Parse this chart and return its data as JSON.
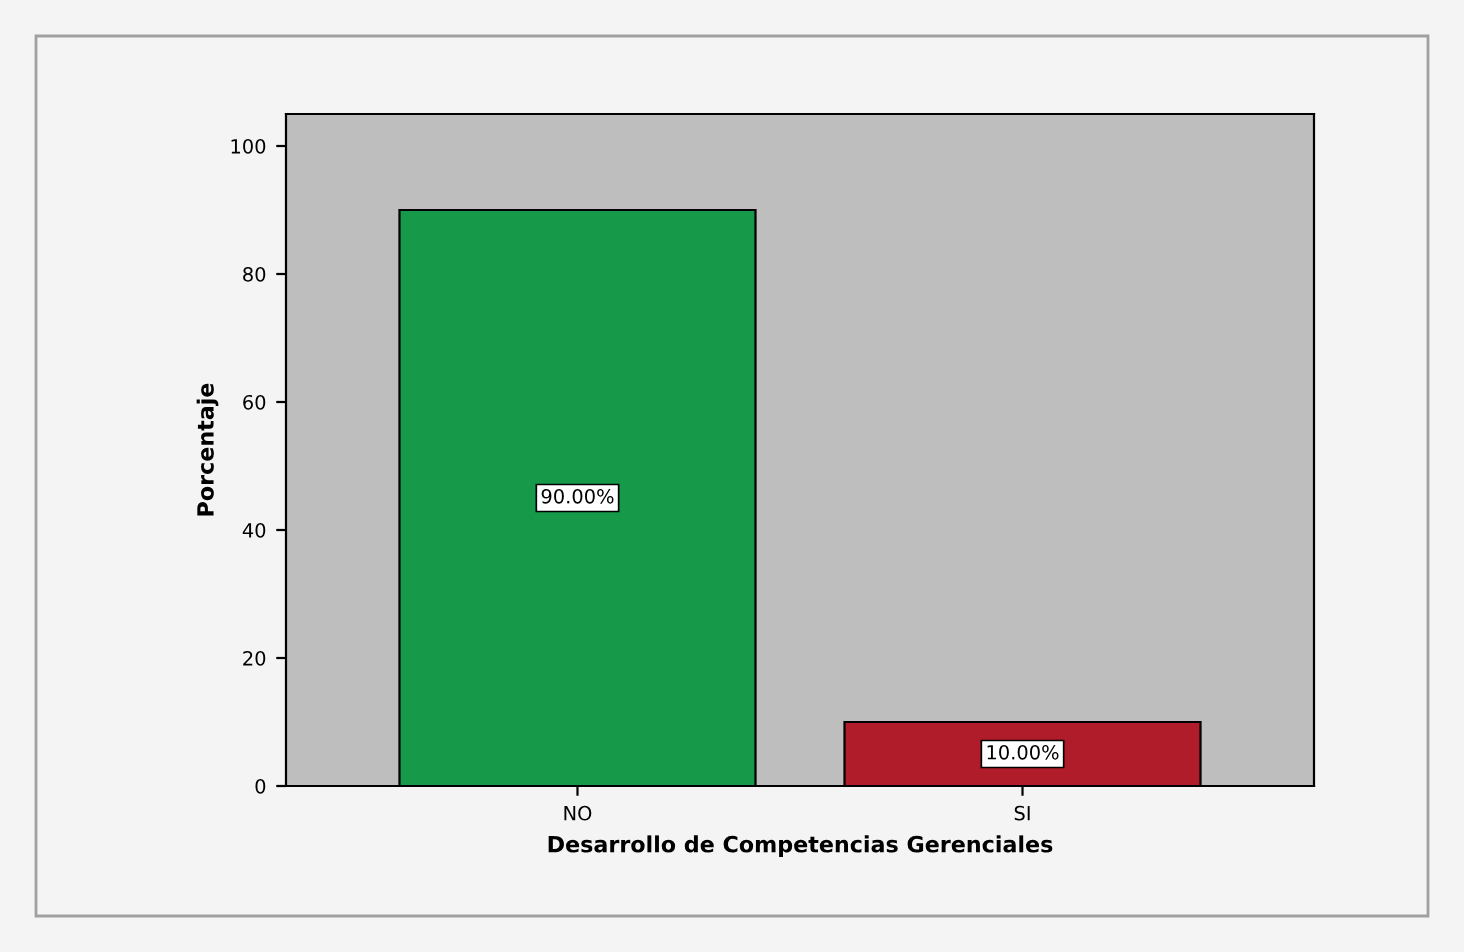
{
  "chart_data": {
    "type": "bar",
    "xlabel": "Desarrollo de Competencias Gerenciales",
    "ylabel": "Porcentaje",
    "categories": [
      "NO",
      "SI"
    ],
    "values": [
      90,
      10
    ],
    "colors": [
      "#169a4a",
      "#b01c2a"
    ],
    "value_labels": [
      "90.00%",
      "10.00%"
    ],
    "ylim": [
      0,
      105
    ],
    "yticks": [
      0,
      20,
      40,
      60,
      80,
      100
    ],
    "grid": false,
    "legend": false
  }
}
